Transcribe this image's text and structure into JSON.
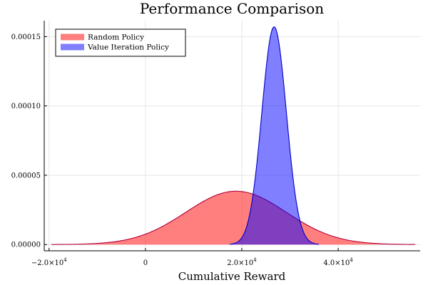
{
  "chart_data": {
    "type": "area",
    "title": "Performance Comparison",
    "xlabel": "Cumulative Reward",
    "ylabel": "",
    "xlim": [
      -21000,
      57000
    ],
    "ylim": [
      -4.5e-06,
      0.0001615
    ],
    "grid": true,
    "legend_position": "top-left",
    "x_ticks": [
      {
        "value": -20000,
        "base": "−2.0×10",
        "exp": "4"
      },
      {
        "value": 0,
        "base": "0",
        "exp": ""
      },
      {
        "value": 20000,
        "base": "2.0×10",
        "exp": "4"
      },
      {
        "value": 40000,
        "base": "4.0×10",
        "exp": "4"
      }
    ],
    "y_ticks": [
      {
        "value": 0.0,
        "label": "0.00000"
      },
      {
        "value": 5e-05,
        "label": "0.00005"
      },
      {
        "value": 0.0001,
        "label": "0.00010"
      },
      {
        "value": 0.00015,
        "label": "0.00015"
      }
    ],
    "series": [
      {
        "name": "Random Policy",
        "fill": "#ff0000",
        "stroke": "#b0003a",
        "distribution": "normal",
        "mean": 18800,
        "sd": 10400,
        "peak": 3.85e-05,
        "x_range": [
          -19500,
          56000
        ]
      },
      {
        "name": "Value Iteration Policy",
        "fill": "#0000ff",
        "stroke": "#0000c8",
        "distribution": "normal",
        "mean": 26700,
        "sd": 2550,
        "peak": 0.000157,
        "x_range": [
          17500,
          36000
        ]
      }
    ]
  }
}
